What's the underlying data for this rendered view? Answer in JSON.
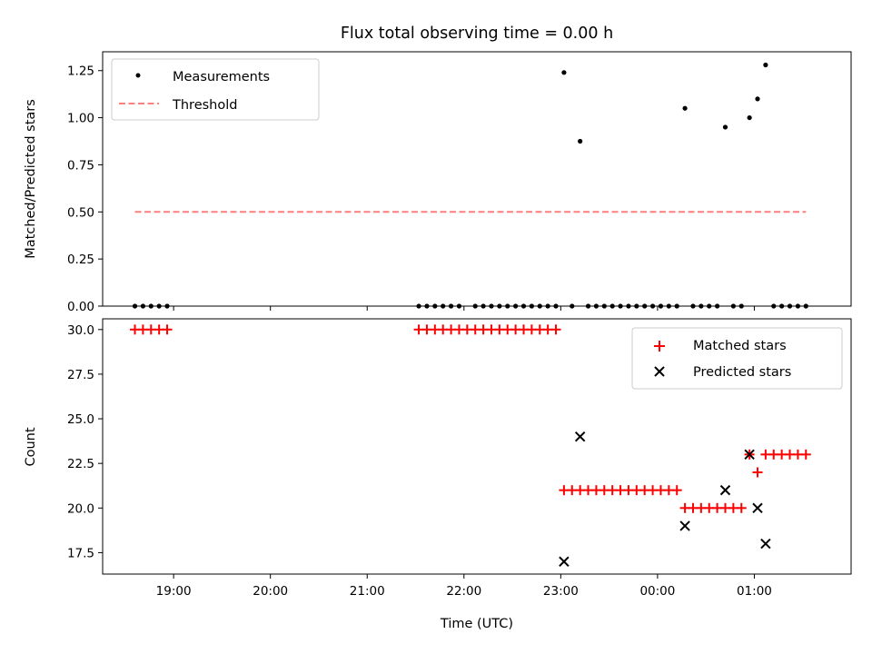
{
  "chart_data": [
    {
      "type": "scatter",
      "title": "Flux total observing time = 0.00 h",
      "xlabel": "",
      "ylabel": "Matched/Predicted stars",
      "ylim": [
        0,
        1.35
      ],
      "yticks": [
        "0.00",
        "0.25",
        "0.50",
        "0.75",
        "1.00",
        "1.25"
      ],
      "ytick_values": [
        0,
        0.25,
        0.5,
        0.75,
        1.0,
        1.25
      ],
      "legend_position": "upper-left",
      "series": [
        {
          "name": "Measurements",
          "marker": "dot",
          "color": "#000000",
          "points": [
            [
              "18:36",
              0
            ],
            [
              "18:41",
              0
            ],
            [
              "18:46",
              0
            ],
            [
              "18:51",
              0
            ],
            [
              "18:56",
              0
            ],
            [
              "21:32",
              0
            ],
            [
              "21:37",
              0
            ],
            [
              "21:42",
              0
            ],
            [
              "21:47",
              0
            ],
            [
              "21:52",
              0
            ],
            [
              "21:57",
              0
            ],
            [
              "22:07",
              0
            ],
            [
              "22:12",
              0
            ],
            [
              "22:17",
              0
            ],
            [
              "22:22",
              0
            ],
            [
              "22:27",
              0
            ],
            [
              "22:32",
              0
            ],
            [
              "22:37",
              0
            ],
            [
              "22:42",
              0
            ],
            [
              "22:47",
              0
            ],
            [
              "22:52",
              0
            ],
            [
              "22:57",
              0
            ],
            [
              "23:02",
              1.24
            ],
            [
              "23:07",
              0
            ],
            [
              "23:12",
              0.875
            ],
            [
              "23:17",
              0
            ],
            [
              "23:22",
              0
            ],
            [
              "23:27",
              0
            ],
            [
              "23:32",
              0
            ],
            [
              "23:37",
              0
            ],
            [
              "23:42",
              0
            ],
            [
              "23:47",
              0
            ],
            [
              "23:52",
              0
            ],
            [
              "23:57",
              0
            ],
            [
              "00:02",
              0
            ],
            [
              "00:07",
              0
            ],
            [
              "00:12",
              0
            ],
            [
              "00:17",
              1.05
            ],
            [
              "00:22",
              0
            ],
            [
              "00:27",
              0
            ],
            [
              "00:32",
              0
            ],
            [
              "00:37",
              0
            ],
            [
              "00:42",
              0.95
            ],
            [
              "00:47",
              0
            ],
            [
              "00:52",
              0
            ],
            [
              "00:57",
              1.0
            ],
            [
              "01:02",
              1.1
            ],
            [
              "01:07",
              1.28
            ],
            [
              "01:12",
              0
            ],
            [
              "01:17",
              0
            ],
            [
              "01:22",
              0
            ],
            [
              "01:27",
              0
            ],
            [
              "01:32",
              0
            ]
          ]
        },
        {
          "name": "Threshold",
          "line_style": "dashed",
          "color": "#ff7f7f",
          "points": [
            [
              "18:36",
              0.5
            ],
            [
              "01:32",
              0.5
            ]
          ]
        }
      ]
    },
    {
      "type": "scatter",
      "title": "",
      "xlabel": "Time (UTC)",
      "ylabel": "Count",
      "ylim": [
        16.3,
        30.6
      ],
      "yticks": [
        "17.5",
        "20.0",
        "22.5",
        "25.0",
        "27.5",
        "30.0"
      ],
      "ytick_values": [
        17.5,
        20,
        22.5,
        25,
        27.5,
        30
      ],
      "xticks": [
        "19:00",
        "20:00",
        "21:00",
        "22:00",
        "23:00",
        "00:00",
        "01:00"
      ],
      "xlim": [
        "18:16",
        "02:00"
      ],
      "legend_position": "upper-right",
      "series": [
        {
          "name": "Matched stars",
          "marker": "plus",
          "color": "#ff0000",
          "points": [
            [
              "18:36",
              30
            ],
            [
              "18:41",
              30
            ],
            [
              "18:46",
              30
            ],
            [
              "18:51",
              30
            ],
            [
              "18:56",
              30
            ],
            [
              "21:32",
              30
            ],
            [
              "21:37",
              30
            ],
            [
              "21:42",
              30
            ],
            [
              "21:47",
              30
            ],
            [
              "21:52",
              30
            ],
            [
              "21:57",
              30
            ],
            [
              "22:02",
              30
            ],
            [
              "22:07",
              30
            ],
            [
              "22:12",
              30
            ],
            [
              "22:17",
              30
            ],
            [
              "22:22",
              30
            ],
            [
              "22:27",
              30
            ],
            [
              "22:32",
              30
            ],
            [
              "22:37",
              30
            ],
            [
              "22:42",
              30
            ],
            [
              "22:47",
              30
            ],
            [
              "22:52",
              30
            ],
            [
              "22:57",
              30
            ],
            [
              "23:02",
              21
            ],
            [
              "23:07",
              21
            ],
            [
              "23:12",
              21
            ],
            [
              "23:17",
              21
            ],
            [
              "23:22",
              21
            ],
            [
              "23:27",
              21
            ],
            [
              "23:32",
              21
            ],
            [
              "23:37",
              21
            ],
            [
              "23:42",
              21
            ],
            [
              "23:47",
              21
            ],
            [
              "23:52",
              21
            ],
            [
              "23:57",
              21
            ],
            [
              "00:02",
              21
            ],
            [
              "00:07",
              21
            ],
            [
              "00:12",
              21
            ],
            [
              "00:17",
              20
            ],
            [
              "00:22",
              20
            ],
            [
              "00:27",
              20
            ],
            [
              "00:32",
              20
            ],
            [
              "00:37",
              20
            ],
            [
              "00:42",
              20
            ],
            [
              "00:47",
              20
            ],
            [
              "00:52",
              20
            ],
            [
              "00:57",
              23
            ],
            [
              "01:02",
              22
            ],
            [
              "01:07",
              23
            ],
            [
              "01:12",
              23
            ],
            [
              "01:17",
              23
            ],
            [
              "01:22",
              23
            ],
            [
              "01:27",
              23
            ],
            [
              "01:32",
              23
            ]
          ]
        },
        {
          "name": "Predicted stars",
          "marker": "x",
          "color": "#000000",
          "points": [
            [
              "23:02",
              17
            ],
            [
              "23:12",
              24
            ],
            [
              "00:17",
              19
            ],
            [
              "00:42",
              21
            ],
            [
              "00:57",
              23
            ],
            [
              "01:02",
              20
            ],
            [
              "01:07",
              18
            ]
          ]
        }
      ]
    }
  ]
}
